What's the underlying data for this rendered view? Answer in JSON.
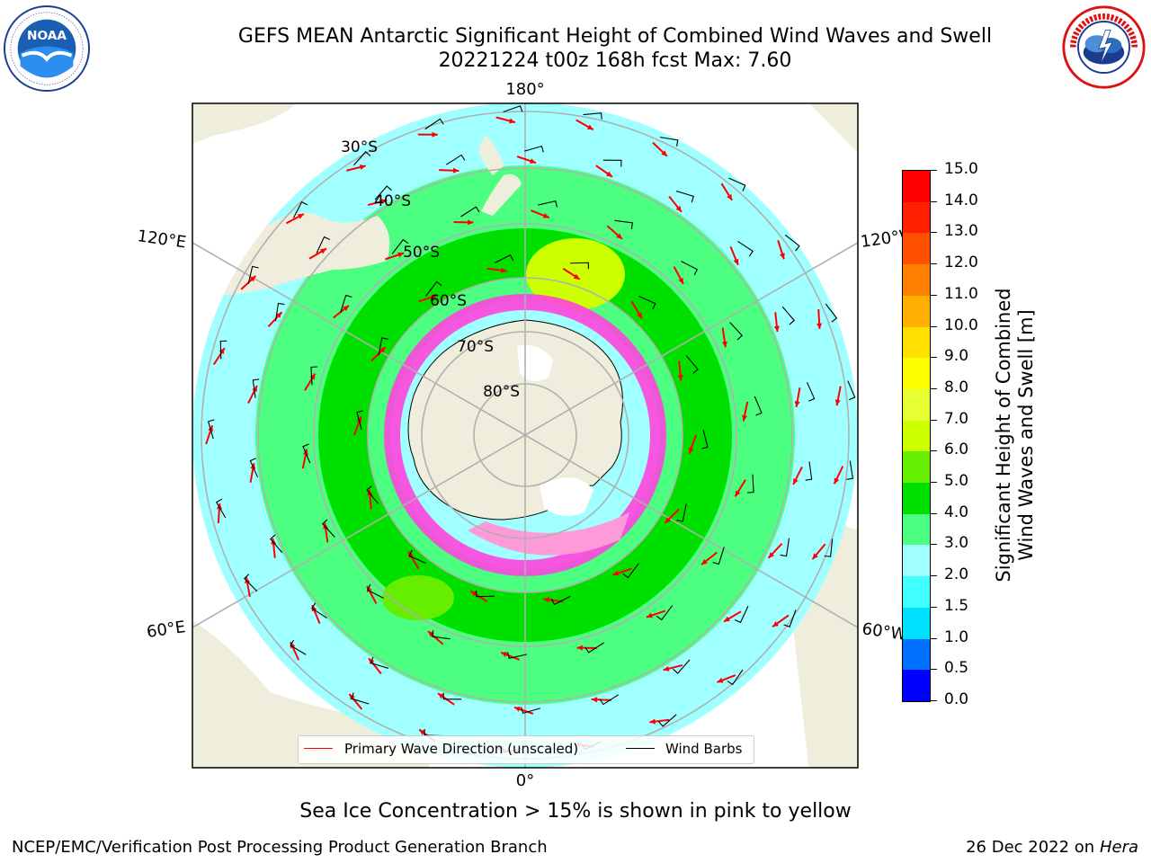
{
  "header": {
    "title_line1": "GEFS MEAN Antarctic Significant Height of Combined Wind Waves and Swell",
    "title_line2": "20221224 t00z 168h fcst   Max: 7.60"
  },
  "logos": {
    "left": "NOAA",
    "left_ring_text": "NATIONAL OCEANIC AND ATMOSPHERIC ADMINISTRATION · U.S. DEPARTMENT OF COMMERCE",
    "right_ring_text": "NATIONAL WEATHER SERVICE"
  },
  "map": {
    "longitude_labels": {
      "top": "180°",
      "bottom": "0°",
      "upper_left": "120°E",
      "lower_left": "60°E",
      "upper_right": "120°W",
      "lower_right": "60°W"
    },
    "latitude_labels": [
      "30°S",
      "40°S",
      "50°S",
      "60°S",
      "70°S",
      "80°S"
    ],
    "colors": {
      "land": "#efeedc",
      "antarctica": "#efeedc",
      "grid": "#b0b0b0",
      "sea_ice": "#ff44dd",
      "arrow": "#ff0000",
      "barb": "#000000"
    }
  },
  "legend": {
    "wave_dir_label": "Primary Wave Direction (unscaled)",
    "wind_barbs_label": "Wind Barbs",
    "wave_dir_color": "#ff0000",
    "wind_barbs_color": "#000000"
  },
  "colorbar": {
    "label_line1": "Significant Height of Combined",
    "label_line2": "Wind Waves and Swell [m]",
    "ticks": [
      "0.0",
      "0.5",
      "1.0",
      "1.5",
      "2.0",
      "3.0",
      "4.0",
      "5.0",
      "6.0",
      "7.0",
      "8.0",
      "9.0",
      "10.0",
      "11.0",
      "12.0",
      "13.0",
      "14.0",
      "15.0"
    ],
    "colors": [
      "#0000ff",
      "#0070ff",
      "#00e0ff",
      "#40ffff",
      "#a0ffff",
      "#4cff80",
      "#00e000",
      "#66ee00",
      "#ccff00",
      "#e6ff33",
      "#ffff00",
      "#ffe000",
      "#ffb000",
      "#ff8000",
      "#ff5000",
      "#ff2000",
      "#ff0000"
    ]
  },
  "sea_ice_note": "Sea Ice Concentration > 15% is shown in pink to yellow",
  "footer": {
    "left": "NCEP/EMC/Verification Post Processing Product Generation Branch",
    "right_date": "26 Dec 2022 on",
    "right_host": "Hera"
  }
}
